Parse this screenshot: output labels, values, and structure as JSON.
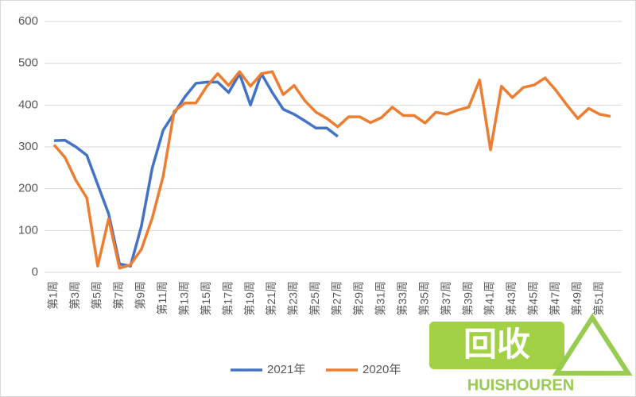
{
  "chart_data": {
    "type": "line",
    "categories": [
      "第1周",
      null,
      "第3周",
      null,
      "第5周",
      null,
      "第7周",
      null,
      "第9周",
      null,
      "第11周",
      null,
      "第13周",
      null,
      "第15周",
      null,
      "第17周",
      null,
      "第19周",
      null,
      "第21周",
      null,
      "第23周",
      null,
      "第25周",
      null,
      "第27周",
      null,
      "第29周",
      null,
      "第31周",
      null,
      "第33周",
      null,
      "第35周",
      null,
      "第37周",
      null,
      "第39周",
      null,
      "第41周",
      null,
      "第43周",
      null,
      "第45周",
      null,
      "第47周",
      null,
      "第49周",
      null,
      "第51周",
      null
    ],
    "series": [
      {
        "name": "2021年",
        "color": "#4472c4",
        "values": [
          315,
          316,
          300,
          280,
          210,
          140,
          20,
          15,
          110,
          250,
          340,
          380,
          420,
          452,
          455,
          455,
          430,
          475,
          400,
          475,
          430,
          390,
          378,
          362,
          345,
          345,
          325,
          null,
          null,
          null,
          null,
          null,
          null,
          null,
          null,
          null,
          null,
          null,
          null,
          null,
          null,
          null,
          null,
          null,
          null,
          null,
          null,
          null,
          null,
          null,
          null,
          null
        ]
      },
      {
        "name": "2020年",
        "color": "#ed7d31",
        "values": [
          305,
          275,
          220,
          178,
          15,
          128,
          10,
          18,
          55,
          130,
          230,
          385,
          405,
          405,
          445,
          475,
          447,
          480,
          445,
          475,
          480,
          425,
          447,
          410,
          383,
          368,
          348,
          372,
          372,
          358,
          370,
          395,
          375,
          375,
          357,
          383,
          378,
          388,
          395,
          460,
          293,
          445,
          418,
          442,
          448,
          465,
          435,
          400,
          368,
          392,
          378,
          373
        ]
      }
    ],
    "ylim": [
      0,
      600
    ],
    "yticks": [
      0,
      100,
      200,
      300,
      400,
      500,
      600
    ],
    "grid": true,
    "legend": "bottom"
  },
  "watermark": {
    "text": "回收",
    "subtext": "HUISHOUREN"
  }
}
